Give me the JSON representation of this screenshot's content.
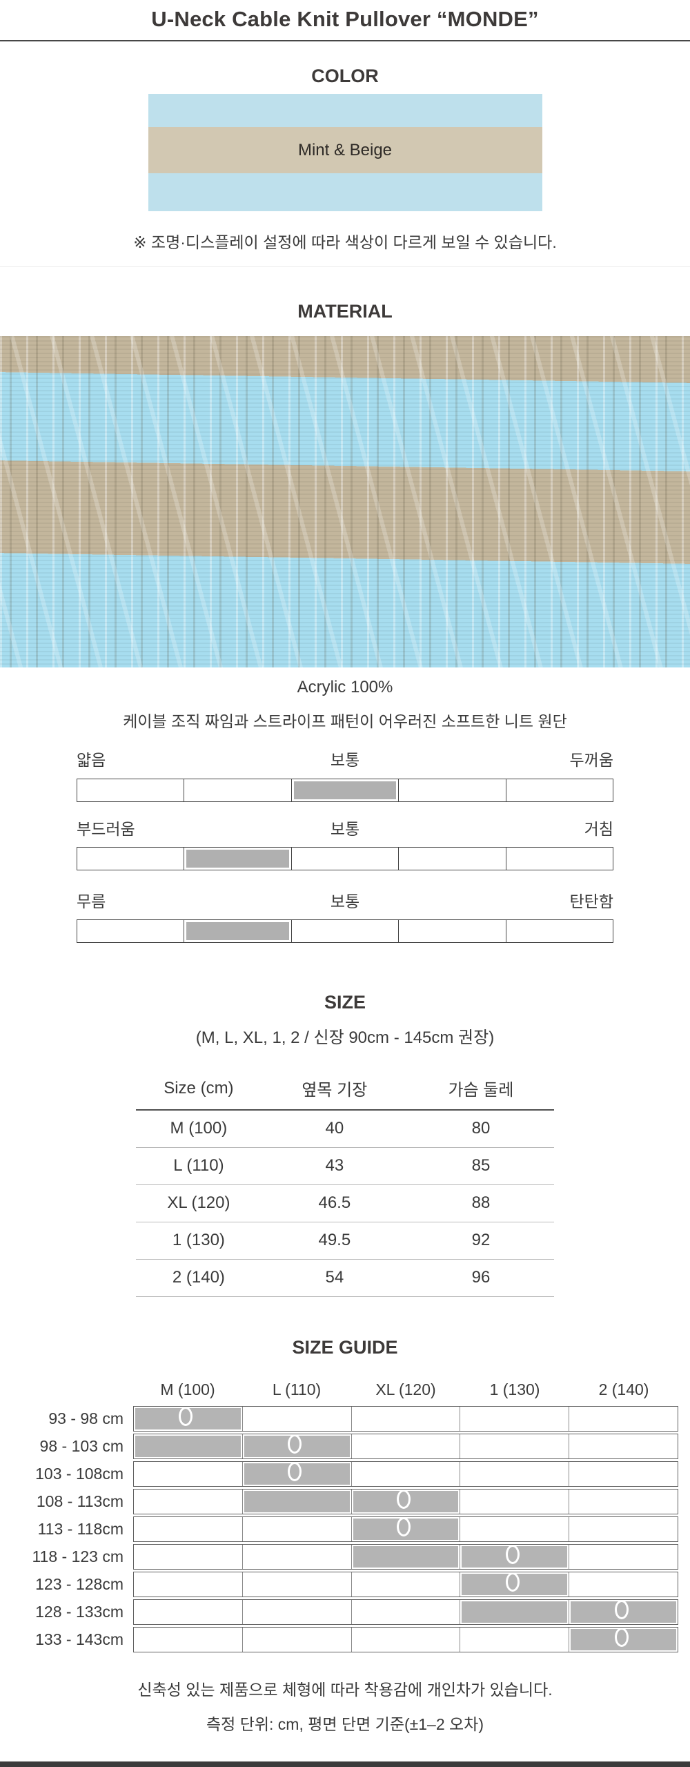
{
  "page": {
    "title": "U-Neck Cable Knit Pullover “MONDE”"
  },
  "color_section": {
    "heading": "COLOR",
    "swatch_label": "Mint & Beige",
    "mint_hex": "#bee0ec",
    "beige_hex": "#d2c8b2",
    "note": "※ 조명·디스플레이 설정에 따라 색상이 다르게 보일 수 있습니다."
  },
  "material_section": {
    "heading": "MATERIAL",
    "fabric_photo": "striped-cable-knit-fabric",
    "fabric_mint_hex": "#a7ddef",
    "fabric_beige_hex": "#c3b69c",
    "composition": "Acrylic 100%",
    "description": "케이블 조직 짜임과 스트라이프 패턴이 어우러진 소프트한 니트 원단",
    "scale_fill_hex": "#b0b0b0",
    "scales": [
      {
        "left": "얇음",
        "center": "보통",
        "right": "두꺼움",
        "segments": 5,
        "filled_segment": 3
      },
      {
        "left": "부드러움",
        "center": "보통",
        "right": "거침",
        "segments": 5,
        "filled_segment": 2
      },
      {
        "left": "무름",
        "center": "보통",
        "right": "탄탄함",
        "segments": 5,
        "filled_segment": 2
      }
    ]
  },
  "size_section": {
    "heading": "SIZE",
    "subtitle": "(M, L, XL, 1, 2 / 신장 90cm - 145cm 권장)",
    "table": {
      "columns": [
        "Size (cm)",
        "옆목 기장",
        "가슴 둘레"
      ],
      "rows": [
        [
          "M (100)",
          "40",
          "80"
        ],
        [
          "L (110)",
          "43",
          "85"
        ],
        [
          "XL (120)",
          "46.5",
          "88"
        ],
        [
          "1 (130)",
          "49.5",
          "92"
        ],
        [
          "2 (140)",
          "54",
          "96"
        ]
      ]
    }
  },
  "size_guide_section": {
    "heading": "SIZE GUIDE",
    "columns": [
      "M (100)",
      "L (110)",
      "XL (120)",
      "1 (130)",
      "2 (140)"
    ],
    "cell_fill_hex": "#b4b4b4",
    "rows": [
      {
        "label": "93 - 98 cm",
        "filled": [
          1
        ],
        "circle": 1
      },
      {
        "label": "98 - 103 cm",
        "filled": [
          1,
          2
        ],
        "circle": 2
      },
      {
        "label": "103 - 108cm",
        "filled": [
          2
        ],
        "circle": 2
      },
      {
        "label": "108 - 113cm",
        "filled": [
          2,
          3
        ],
        "circle": 3
      },
      {
        "label": "113 - 118cm",
        "filled": [
          3
        ],
        "circle": 3
      },
      {
        "label": "118 - 123 cm",
        "filled": [
          3,
          4
        ],
        "circle": 4
      },
      {
        "label": "123 - 128cm",
        "filled": [
          4
        ],
        "circle": 4
      },
      {
        "label": "128 - 133cm",
        "filled": [
          4,
          5
        ],
        "circle": 5
      },
      {
        "label": "133 - 143cm",
        "filled": [
          5
        ],
        "circle": 5
      }
    ],
    "notes": [
      "신축성 있는 제품으로 체형에 따라 착용감에 개인차가 있습니다.",
      "측정 단위: cm, 평면 단면 기준(±1–2 오차)"
    ]
  }
}
